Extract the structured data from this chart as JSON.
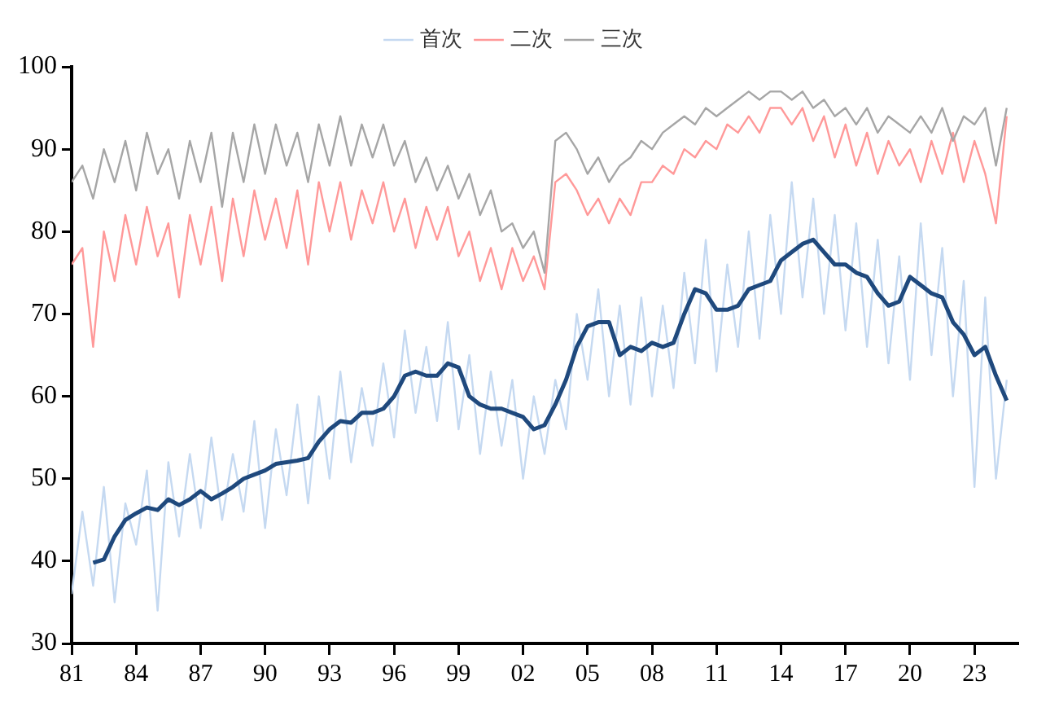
{
  "chart_data": {
    "type": "line",
    "legend": "top",
    "grid": false,
    "marker": "none",
    "line_style": "solid",
    "x": [
      1981,
      1981.5,
      1982,
      1982.5,
      1983,
      1983.5,
      1984,
      1984.5,
      1985,
      1985.5,
      1986,
      1986.5,
      1987,
      1987.5,
      1988,
      1988.5,
      1989,
      1989.5,
      1990,
      1990.5,
      1991,
      1991.5,
      1992,
      1992.5,
      1993,
      1993.5,
      1994,
      1994.5,
      1995,
      1995.5,
      1996,
      1996.5,
      1997,
      1997.5,
      1998,
      1998.5,
      1999,
      1999.5,
      2000,
      2000.5,
      2001,
      2001.5,
      2002,
      2002.5,
      2003,
      2003.5,
      2004,
      2004.5,
      2005,
      2005.5,
      2006,
      2006.5,
      2007,
      2007.5,
      2008,
      2008.5,
      2009,
      2009.5,
      2010,
      2010.5,
      2011,
      2011.5,
      2012,
      2012.5,
      2013,
      2013.5,
      2014,
      2014.5,
      2015,
      2015.5,
      2016,
      2016.5,
      2017,
      2017.5,
      2018,
      2018.5,
      2019,
      2019.5,
      2020,
      2020.5,
      2021,
      2021.5,
      2022,
      2022.5,
      2023,
      2023.5,
      2024,
      2024.5
    ],
    "xlim": [
      1981,
      2025
    ],
    "xticks": [
      {
        "value": 1981,
        "label": "81"
      },
      {
        "value": 1984,
        "label": "84"
      },
      {
        "value": 1987,
        "label": "87"
      },
      {
        "value": 1990,
        "label": "90"
      },
      {
        "value": 1993,
        "label": "93"
      },
      {
        "value": 1996,
        "label": "96"
      },
      {
        "value": 1999,
        "label": "99"
      },
      {
        "value": 2002,
        "label": "02"
      },
      {
        "value": 2005,
        "label": "05"
      },
      {
        "value": 2008,
        "label": "08"
      },
      {
        "value": 2011,
        "label": "11"
      },
      {
        "value": 2014,
        "label": "14"
      },
      {
        "value": 2017,
        "label": "17"
      },
      {
        "value": 2020,
        "label": "20"
      },
      {
        "value": 2023,
        "label": "23"
      }
    ],
    "ylim": [
      30,
      100
    ],
    "yticks": [
      30,
      40,
      50,
      60,
      70,
      80,
      90,
      100
    ],
    "series": [
      {
        "name": "首次",
        "color": "#c5d9f1",
        "values": [
          36,
          46,
          37,
          49,
          35,
          47,
          42,
          51,
          34,
          52,
          43,
          53,
          44,
          55,
          45,
          53,
          46,
          57,
          44,
          56,
          48,
          59,
          47,
          60,
          50,
          63,
          52,
          61,
          54,
          64,
          55,
          68,
          58,
          66,
          57,
          69,
          56,
          65,
          53,
          63,
          54,
          62,
          50,
          60,
          53,
          62,
          56,
          70,
          62,
          73,
          60,
          71,
          59,
          72,
          60,
          71,
          61,
          75,
          64,
          79,
          63,
          76,
          66,
          80,
          67,
          82,
          70,
          86,
          72,
          84,
          70,
          82,
          68,
          81,
          66,
          79,
          64,
          77,
          62,
          81,
          65,
          78,
          60,
          74,
          49,
          72,
          50,
          62
        ]
      },
      {
        "name": "二次",
        "color": "#ff9999",
        "values": [
          76,
          78,
          66,
          80,
          74,
          82,
          76,
          83,
          77,
          81,
          72,
          82,
          76,
          83,
          74,
          84,
          77,
          85,
          79,
          84,
          78,
          85,
          76,
          86,
          80,
          86,
          79,
          85,
          81,
          86,
          80,
          84,
          78,
          83,
          79,
          83,
          77,
          80,
          74,
          78,
          73,
          78,
          74,
          77,
          73,
          86,
          87,
          85,
          82,
          84,
          81,
          84,
          82,
          86,
          86,
          88,
          87,
          90,
          89,
          91,
          90,
          93,
          92,
          94,
          92,
          95,
          95,
          93,
          95,
          91,
          94,
          89,
          93,
          88,
          92,
          87,
          91,
          88,
          90,
          86,
          91,
          87,
          92,
          86,
          91,
          87,
          81,
          94
        ]
      },
      {
        "name": "三次",
        "color": "#a6a6a6",
        "values": [
          86,
          88,
          84,
          90,
          86,
          91,
          85,
          92,
          87,
          90,
          84,
          91,
          86,
          92,
          83,
          92,
          86,
          93,
          87,
          93,
          88,
          92,
          86,
          93,
          88,
          94,
          88,
          93,
          89,
          93,
          88,
          91,
          86,
          89,
          85,
          88,
          84,
          87,
          82,
          85,
          80,
          81,
          78,
          80,
          75,
          91,
          92,
          90,
          87,
          89,
          86,
          88,
          89,
          91,
          90,
          92,
          93,
          94,
          93,
          95,
          94,
          95,
          96,
          97,
          96,
          97,
          97,
          96,
          97,
          95,
          96,
          94,
          95,
          93,
          95,
          92,
          94,
          93,
          92,
          94,
          92,
          95,
          91,
          94,
          93,
          95,
          88,
          95
        ]
      },
      {
        "color": "#1f497d",
        "values": [
          null,
          null,
          39.8,
          40.2,
          43,
          45,
          45.8,
          46.5,
          46.2,
          47.5,
          46.8,
          47.5,
          48.5,
          47.5,
          48.2,
          49,
          50,
          50.5,
          51,
          51.8,
          52,
          52.2,
          52.5,
          54.5,
          56,
          57,
          56.8,
          58,
          58,
          58.5,
          60,
          62.5,
          63,
          62.5,
          62.5,
          64,
          63.5,
          60,
          59,
          58.5,
          58.5,
          58,
          57.5,
          56,
          56.5,
          59,
          62,
          66,
          68.5,
          69,
          69,
          65,
          66,
          65.5,
          66.5,
          66,
          66.5,
          70,
          73,
          72.5,
          70.5,
          70.5,
          71,
          73,
          73.5,
          74,
          76.5,
          77.5,
          78.5,
          79,
          77.5,
          76,
          76,
          75,
          74.5,
          72.5,
          71,
          71.5,
          74.5,
          73.5,
          72.5,
          72,
          69,
          67.5,
          65,
          66,
          62.5,
          59.5
        ]
      }
    ]
  }
}
